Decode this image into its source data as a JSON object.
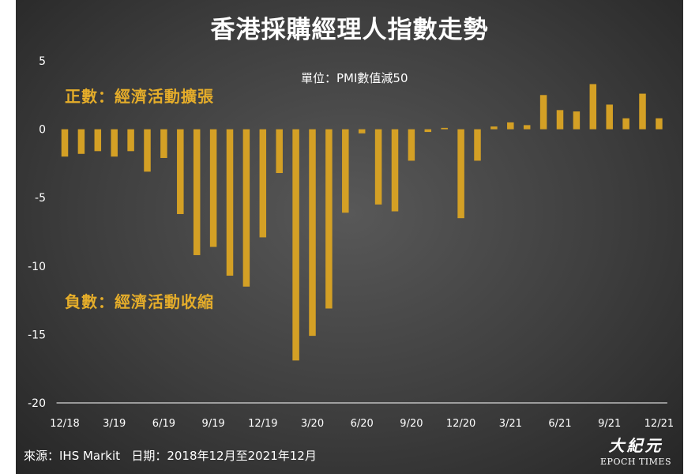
{
  "title": "香港採購經理人指數走勢",
  "unit_note": "單位：PMI數值減50",
  "annotations": {
    "positive": "正數：經濟活動擴張",
    "negative": "負數：經濟活動收縮"
  },
  "source": "來源：IHS Markit   日期：2018年12月至2021年12月",
  "logo": {
    "cn": "大紀元",
    "en": "EPOCH TIMES"
  },
  "colors": {
    "bar": "#d4a025",
    "axis": "#ffffff",
    "text": "#ffffff",
    "annotation": "#e5ad2a"
  },
  "chart_data": {
    "type": "bar",
    "title": "香港採購經理人指數走勢",
    "ylabel": "",
    "xlabel": "",
    "ylim": [
      -20,
      5
    ],
    "yticks": [
      5,
      0,
      -5,
      -10,
      -15,
      -20
    ],
    "grid": false,
    "xtick_labels": [
      "12/18",
      "3/19",
      "6/19",
      "9/19",
      "12/19",
      "3/20",
      "6/20",
      "9/20",
      "12/20",
      "3/21",
      "6/21",
      "9/21",
      "12/21"
    ],
    "categories": [
      "12/18",
      "1/19",
      "2/19",
      "3/19",
      "4/19",
      "5/19",
      "6/19",
      "7/19",
      "8/19",
      "9/19",
      "10/19",
      "11/19",
      "12/19",
      "1/20",
      "2/20",
      "3/20",
      "4/20",
      "5/20",
      "6/20",
      "7/20",
      "8/20",
      "9/20",
      "10/20",
      "11/20",
      "12/20",
      "1/21",
      "2/21",
      "3/21",
      "4/21",
      "5/21",
      "6/21",
      "7/21",
      "8/21",
      "9/21",
      "10/21",
      "11/21",
      "12/21"
    ],
    "values": [
      -2.0,
      -1.8,
      -1.6,
      -2.0,
      -1.6,
      -3.1,
      -2.1,
      -6.2,
      -9.2,
      -8.6,
      -10.7,
      -11.5,
      -7.9,
      -3.2,
      -16.9,
      -15.1,
      -13.1,
      -6.1,
      -0.3,
      -5.5,
      -6.0,
      -2.3,
      -0.2,
      0.1,
      -6.5,
      -2.3,
      0.2,
      0.5,
      0.3,
      2.5,
      1.4,
      1.3,
      3.3,
      1.8,
      0.8,
      2.6,
      0.8
    ]
  }
}
